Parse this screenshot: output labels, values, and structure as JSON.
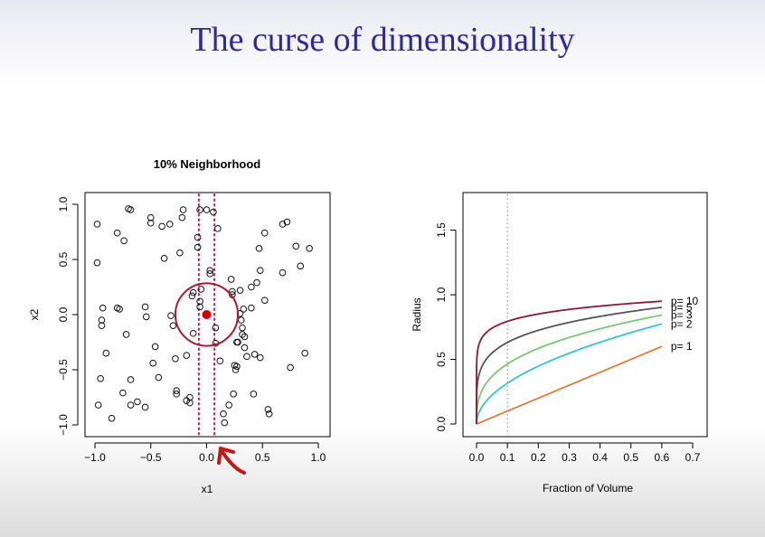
{
  "slide": {
    "title": "The curse of dimensionality"
  },
  "chart_data": [
    {
      "type": "scatter",
      "title": "10% Neighborhood",
      "xlabel": "x1",
      "ylabel": "x2",
      "xlim": [
        -1.0,
        1.0
      ],
      "ylim": [
        -1.0,
        1.0
      ],
      "xticks": [
        "−1.0",
        "−0.5",
        "0.0",
        "0.5",
        "1.0"
      ],
      "yticks": [
        "−1.0",
        "−0.5",
        "0.0",
        "0.5",
        "1.0"
      ],
      "target_point": {
        "x": 0.0,
        "y": 0.0,
        "color": "#d00000"
      },
      "neighborhood_circle": {
        "center": [
          0.0,
          0.0
        ],
        "radius": 0.28,
        "color": "#b0182e"
      },
      "neighborhood_slab": {
        "x": [
          -0.07,
          0.07
        ],
        "color": "#c01b4b",
        "style": "dotted"
      },
      "points": [
        [
          -0.98,
          0.82
        ],
        [
          -0.98,
          0.47
        ],
        [
          -0.93,
          0.06
        ],
        [
          -0.94,
          -0.05
        ],
        [
          -0.94,
          -0.1
        ],
        [
          -0.9,
          -0.35
        ],
        [
          -0.95,
          -0.58
        ],
        [
          -0.97,
          -0.82
        ],
        [
          -0.85,
          -0.94
        ],
        [
          -0.8,
          0.06
        ],
        [
          -0.78,
          0.05
        ],
        [
          -0.8,
          0.74
        ],
        [
          -0.74,
          0.67
        ],
        [
          -0.7,
          0.96
        ],
        [
          -0.68,
          0.95
        ],
        [
          -0.72,
          -0.18
        ],
        [
          -0.75,
          -0.71
        ],
        [
          -0.68,
          -0.59
        ],
        [
          -0.68,
          -0.82
        ],
        [
          -0.62,
          -0.79
        ],
        [
          -0.55,
          -0.84
        ],
        [
          -0.55,
          0.07
        ],
        [
          -0.54,
          -0.02
        ],
        [
          -0.5,
          0.83
        ],
        [
          -0.5,
          0.88
        ],
        [
          -0.48,
          -0.44
        ],
        [
          -0.46,
          -0.29
        ],
        [
          -0.43,
          -0.57
        ],
        [
          -0.4,
          0.8
        ],
        [
          -0.38,
          0.51
        ],
        [
          -0.33,
          0.82
        ],
        [
          -0.32,
          -0.01
        ],
        [
          -0.3,
          -0.1
        ],
        [
          -0.28,
          -0.4
        ],
        [
          -0.27,
          -0.69
        ],
        [
          -0.27,
          -0.72
        ],
        [
          -0.24,
          0.56
        ],
        [
          -0.22,
          0.88
        ],
        [
          -0.21,
          0.95
        ],
        [
          -0.18,
          -0.37
        ],
        [
          -0.18,
          -0.78
        ],
        [
          -0.15,
          -0.75
        ],
        [
          -0.15,
          -0.8
        ],
        [
          -0.13,
          0.17
        ],
        [
          -0.12,
          0.2
        ],
        [
          -0.12,
          -0.17
        ],
        [
          -0.08,
          0.7
        ],
        [
          -0.08,
          0.61
        ],
        [
          -0.06,
          0.95
        ],
        [
          -0.06,
          0.12
        ],
        [
          -0.06,
          0.07
        ],
        [
          -0.05,
          0.23
        ],
        [
          0.0,
          0.95
        ],
        [
          0.03,
          0.4
        ],
        [
          0.03,
          0.37
        ],
        [
          0.06,
          0.93
        ],
        [
          0.08,
          -0.26
        ],
        [
          0.08,
          -0.12
        ],
        [
          0.1,
          0.78
        ],
        [
          0.12,
          -0.42
        ],
        [
          0.15,
          -0.9
        ],
        [
          0.16,
          -0.98
        ],
        [
          0.2,
          -0.82
        ],
        [
          0.22,
          0.32
        ],
        [
          0.23,
          0.18
        ],
        [
          0.23,
          0.21
        ],
        [
          0.24,
          -0.72
        ],
        [
          0.25,
          -0.46
        ],
        [
          0.26,
          -0.5
        ],
        [
          0.27,
          -0.47
        ],
        [
          0.27,
          -0.25
        ],
        [
          0.28,
          -0.25
        ],
        [
          0.3,
          0.22
        ],
        [
          0.3,
          0.01
        ],
        [
          0.31,
          -0.05
        ],
        [
          0.32,
          -0.12
        ],
        [
          0.32,
          -0.18
        ],
        [
          0.33,
          0.05
        ],
        [
          0.34,
          -0.2
        ],
        [
          0.34,
          -0.3
        ],
        [
          0.36,
          -0.38
        ],
        [
          0.4,
          0.25
        ],
        [
          0.4,
          0.06
        ],
        [
          0.42,
          -0.72
        ],
        [
          0.43,
          -0.36
        ],
        [
          0.45,
          0.29
        ],
        [
          0.47,
          0.6
        ],
        [
          0.48,
          -0.39
        ],
        [
          0.48,
          0.4
        ],
        [
          0.52,
          0.74
        ],
        [
          0.52,
          0.13
        ],
        [
          0.55,
          -0.86
        ],
        [
          0.56,
          -0.9
        ],
        [
          0.68,
          0.82
        ],
        [
          0.72,
          0.84
        ],
        [
          0.68,
          0.38
        ],
        [
          0.8,
          0.62
        ],
        [
          0.84,
          0.44
        ],
        [
          0.88,
          -0.35
        ],
        [
          0.92,
          0.6
        ],
        [
          0.75,
          -0.48
        ]
      ]
    },
    {
      "type": "line",
      "title": "",
      "xlabel": "Fraction of Volume",
      "ylabel": "Radius",
      "xlim": [
        0.0,
        0.7
      ],
      "ylim": [
        0.0,
        1.7
      ],
      "xticks": [
        "0.0",
        "0.1",
        "0.2",
        "0.3",
        "0.4",
        "0.5",
        "0.6",
        "0.7"
      ],
      "yticks": [
        "0.0",
        "0.5",
        "1.0",
        "1.5"
      ],
      "vline": {
        "x": 0.1,
        "style": "dotted",
        "color": "#999999"
      },
      "formula": "radius = fraction^(1/p), x from 0 to 0.6",
      "x_range": [
        0.0,
        0.6
      ],
      "series": [
        {
          "name": "p= 1",
          "p": 1,
          "color": "#e07b39"
        },
        {
          "name": "p= 2",
          "p": 2,
          "color": "#35c5c9"
        },
        {
          "name": "p= 3",
          "p": 3,
          "color": "#7cc47a"
        },
        {
          "name": "p= 5",
          "p": 5,
          "color": "#555555"
        },
        {
          "name": "p= 10",
          "p": 10,
          "color": "#8b1a2e"
        }
      ]
    }
  ]
}
